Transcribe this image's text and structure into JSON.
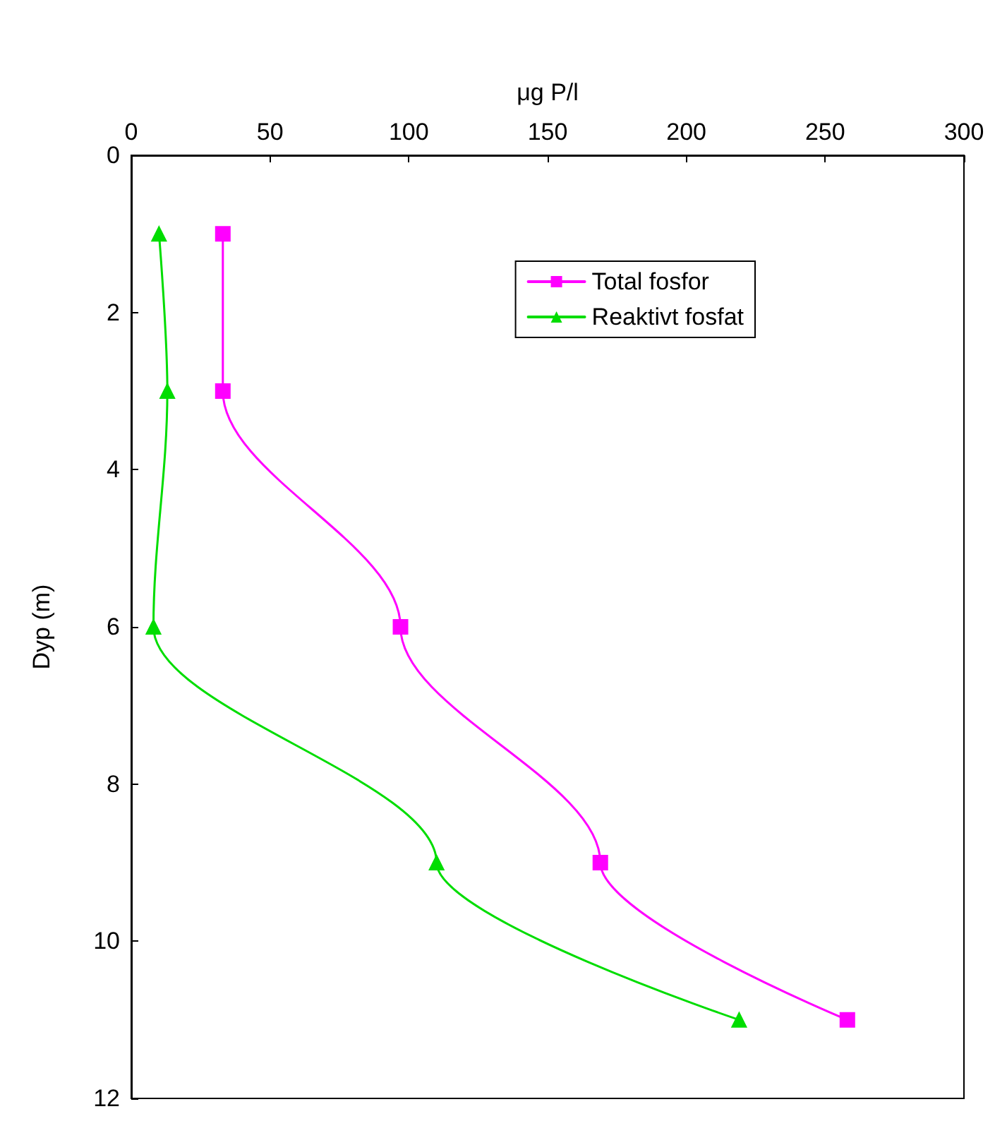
{
  "chart_data": {
    "type": "line",
    "xlabel": "μg P/l",
    "ylabel": "Dyp (m)",
    "xlim": [
      0,
      300
    ],
    "xticks": [
      0,
      50,
      100,
      150,
      200,
      250,
      300
    ],
    "ylim": [
      12,
      0
    ],
    "yticks": [
      0,
      2,
      4,
      6,
      8,
      10,
      12
    ],
    "grid": false,
    "legend": "top right",
    "line_style": "solid",
    "series": [
      {
        "name": "Total fosfor",
        "color": "#ff00ff",
        "marker": "square",
        "x": [
          33,
          33,
          97,
          169,
          258
        ],
        "values": [
          1,
          3,
          6,
          9,
          11
        ]
      },
      {
        "name": "Reaktivt fosfat",
        "color": "#00dd00",
        "marker": "triangle",
        "x": [
          10,
          13,
          8,
          110,
          219
        ],
        "values": [
          1,
          3,
          6,
          9,
          11
        ]
      }
    ]
  }
}
